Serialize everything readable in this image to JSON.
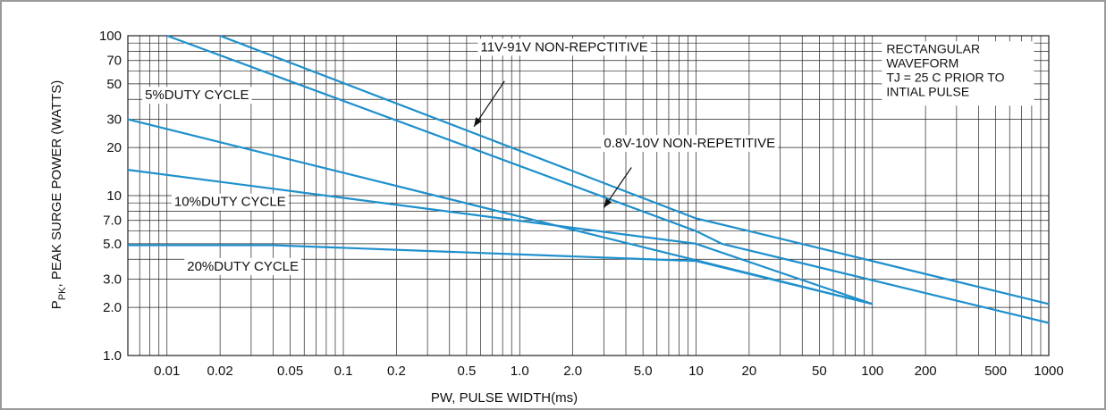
{
  "chart_data": {
    "type": "line",
    "xscale": "log",
    "yscale": "log",
    "xlim": [
      0.006,
      1000
    ],
    "ylim": [
      1.0,
      100
    ],
    "grid": true,
    "xlabel": "PW, PULSE WIDTH(ms)",
    "ylabel_main": "P",
    "ylabel_sub": "PK",
    "ylabel_rest": ", PEAK SURGE POWER (WATTS)",
    "x_ticks": [
      {
        "v": 0.01,
        "label": "0.01"
      },
      {
        "v": 0.02,
        "label": "0.02"
      },
      {
        "v": 0.05,
        "label": "0.05"
      },
      {
        "v": 0.1,
        "label": "0.1"
      },
      {
        "v": 0.2,
        "label": "0.2"
      },
      {
        "v": 0.5,
        "label": "0.5"
      },
      {
        "v": 1,
        "label": "1.0"
      },
      {
        "v": 2,
        "label": "2.0"
      },
      {
        "v": 5,
        "label": "5.0"
      },
      {
        "v": 10,
        "label": "10"
      },
      {
        "v": 20,
        "label": "20"
      },
      {
        "v": 50,
        "label": "50"
      },
      {
        "v": 100,
        "label": "100"
      },
      {
        "v": 200,
        "label": "200"
      },
      {
        "v": 500,
        "label": "500"
      },
      {
        "v": 1000,
        "label": "1000"
      }
    ],
    "y_ticks": [
      {
        "v": 1,
        "label": "1.0"
      },
      {
        "v": 2,
        "label": "2.0"
      },
      {
        "v": 3,
        "label": "3.0"
      },
      {
        "v": 5,
        "label": "5.0"
      },
      {
        "v": 7,
        "label": "7.0"
      },
      {
        "v": 10,
        "label": "10"
      },
      {
        "v": 20,
        "label": "20"
      },
      {
        "v": 30,
        "label": "30"
      },
      {
        "v": 50,
        "label": "50"
      },
      {
        "v": 70,
        "label": "70"
      },
      {
        "v": 100,
        "label": "100"
      }
    ],
    "series": [
      {
        "name": "11V-91V NON-REPCTITIVE",
        "x": [
          0.02,
          10,
          20,
          1000
        ],
        "y": [
          100,
          7.2,
          6.0,
          2.1
        ]
      },
      {
        "name": "0.8V-10V NON-REPETITIVE",
        "x": [
          0.01,
          10,
          14,
          1000
        ],
        "y": [
          100,
          6.0,
          5.0,
          1.6
        ]
      },
      {
        "name": "5%DUTY CYCLE",
        "x": [
          0.006,
          100
        ],
        "y": [
          30,
          2.1
        ]
      },
      {
        "name": "10%DUTY CYCLE",
        "x": [
          0.006,
          10,
          100
        ],
        "y": [
          14.5,
          5.0,
          2.1
        ]
      },
      {
        "name": "20%DUTY CYCLE",
        "x": [
          0.006,
          0.04,
          10,
          100
        ],
        "y": [
          4.9,
          4.9,
          3.9,
          2.1
        ]
      }
    ],
    "line_color": "#1e90cd",
    "annotations": [
      {
        "text": "11V-91V NON-REPCTITIVE",
        "x": 0.6,
        "y": 80
      },
      {
        "text": "0.8V-10V NON-REPETITIVE",
        "x": 3,
        "y": 20
      },
      {
        "text": "5%DUTY CYCLE",
        "x": 0.0075,
        "y": 40
      },
      {
        "text": "10%DUTY CYCLE",
        "x": 0.011,
        "y": 8.6
      },
      {
        "text": "20%DUTY CYCLE",
        "x": 0.013,
        "y": 3.4
      }
    ],
    "note_lines": [
      "RECTANGULAR",
      "WAVEFORM",
      "TJ = 25 C PRIOR TO",
      "INTIAL PULSE"
    ]
  }
}
